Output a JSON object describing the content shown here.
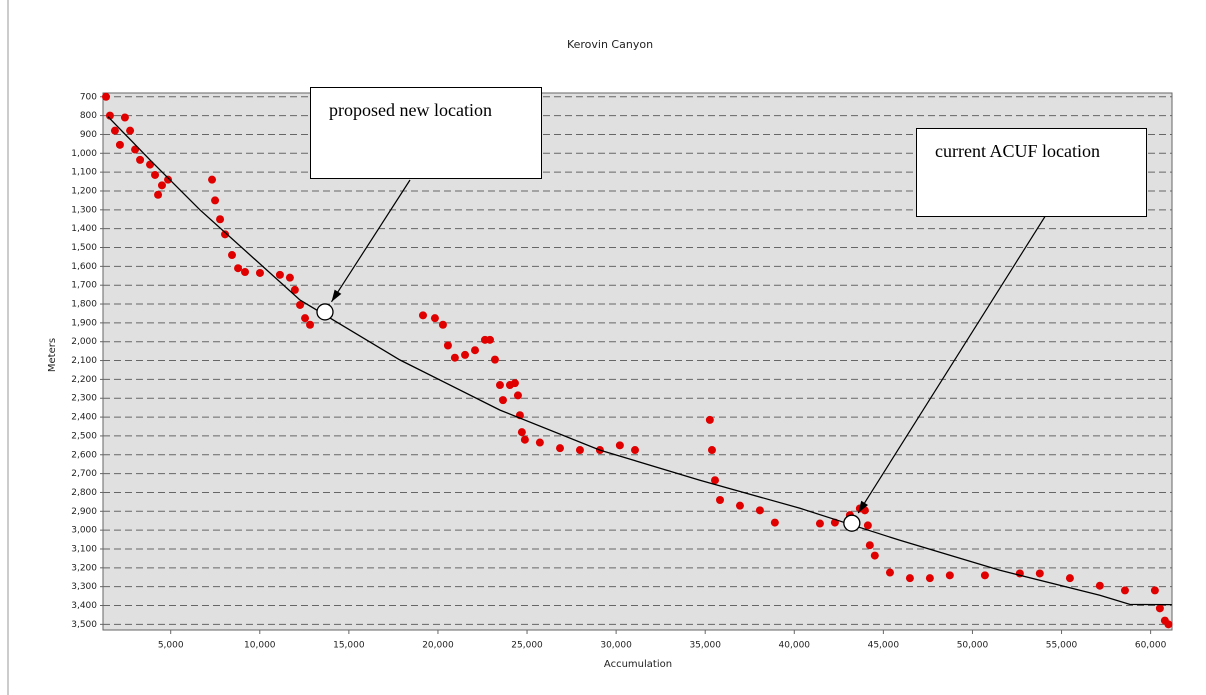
{
  "chart_data": {
    "type": "scatter",
    "title": "Kerovin Canyon",
    "x_label": "Accumulation",
    "y_label": "Meters",
    "xlim": [
      1200,
      61200
    ],
    "ylim": [
      680,
      3530
    ],
    "y_reversed": true,
    "grid": true,
    "xticks": [
      {
        "value": 5000,
        "label": "5,000"
      },
      {
        "value": 10000,
        "label": "10,000"
      },
      {
        "value": 15000,
        "label": "15,000"
      },
      {
        "value": 20000,
        "label": "20,000"
      },
      {
        "value": 25000,
        "label": "25,000"
      },
      {
        "value": 30000,
        "label": "30,000"
      },
      {
        "value": 35000,
        "label": "35,000"
      },
      {
        "value": 40000,
        "label": "40,000"
      },
      {
        "value": 45000,
        "label": "45,000"
      },
      {
        "value": 50000,
        "label": "50,000"
      },
      {
        "value": 55000,
        "label": "55,000"
      },
      {
        "value": 60000,
        "label": "60,000"
      }
    ],
    "yticks": [
      700,
      800,
      900,
      {
        "value": 1000,
        "label": "1,000"
      },
      {
        "value": 1100,
        "label": "1,100"
      },
      {
        "value": 1200,
        "label": "1,200"
      },
      {
        "value": 1300,
        "label": "1,300"
      },
      {
        "value": 1400,
        "label": "1,400"
      },
      {
        "value": 1500,
        "label": "1,500"
      },
      {
        "value": 1600,
        "label": "1,600"
      },
      {
        "value": 1700,
        "label": "1,700"
      },
      {
        "value": 1800,
        "label": "1,800"
      },
      {
        "value": 1900,
        "label": "1,900"
      },
      {
        "value": 2000,
        "label": "2,000"
      },
      {
        "value": 2100,
        "label": "2,100"
      },
      {
        "value": 2200,
        "label": "2,200"
      },
      {
        "value": 2300,
        "label": "2,300"
      },
      {
        "value": 2400,
        "label": "2,400"
      },
      {
        "value": 2500,
        "label": "2,500"
      },
      {
        "value": 2600,
        "label": "2,600"
      },
      {
        "value": 2700,
        "label": "2,700"
      },
      {
        "value": 2800,
        "label": "2,800"
      },
      {
        "value": 2900,
        "label": "2,900"
      },
      {
        "value": 3000,
        "label": "3,000"
      },
      {
        "value": 3100,
        "label": "3,100"
      },
      {
        "value": 3200,
        "label": "3,200"
      },
      {
        "value": 3300,
        "label": "3,300"
      },
      {
        "value": 3400,
        "label": "3,400"
      },
      {
        "value": 3500,
        "label": "3,500"
      }
    ],
    "series": [
      {
        "type": "scatter",
        "color": "#e00000",
        "x": [
          1370,
          1590,
          1870,
          2150,
          2430,
          2720,
          3000,
          3280,
          3840,
          4120,
          4290,
          4510,
          4850,
          7320,
          7490,
          7770,
          8050,
          8440,
          8780,
          9170,
          10010,
          11130,
          11690,
          11970,
          12260,
          12540,
          12820,
          19160,
          19830,
          20280,
          20560,
          20950,
          21520,
          22080,
          22640,
          22920,
          23200,
          23480,
          23650,
          24040,
          24320,
          24490,
          24600,
          24710,
          24880,
          25720,
          26850,
          27970,
          29090,
          30210,
          31060,
          35260,
          35380,
          35550,
          35830,
          36950,
          38070,
          38910,
          41440,
          42280,
          43120,
          43680,
          43960,
          44130,
          44240,
          44520,
          45370,
          46490,
          47610,
          48730,
          50700,
          52660,
          53780,
          55470,
          57150,
          58560,
          60240,
          60520,
          60800,
          61000
        ],
        "values": [
          700,
          800,
          880,
          955,
          810,
          880,
          980,
          1035,
          1060,
          1115,
          1220,
          1170,
          1140,
          1140,
          1250,
          1350,
          1430,
          1540,
          1610,
          1630,
          1635,
          1645,
          1660,
          1725,
          1805,
          1875,
          1910,
          1860,
          1875,
          1910,
          2020,
          2085,
          2070,
          2045,
          1990,
          1990,
          2095,
          2230,
          2310,
          2230,
          2220,
          2285,
          2390,
          2480,
          2520,
          2535,
          2565,
          2575,
          2575,
          2550,
          2575,
          2415,
          2575,
          2735,
          2840,
          2870,
          2895,
          2960,
          2965,
          2960,
          2920,
          2885,
          2895,
          2975,
          3080,
          3135,
          3225,
          3255,
          3255,
          3240,
          3240,
          3230,
          3230,
          3255,
          3295,
          3320,
          3320,
          3415,
          3480,
          3500
        ]
      },
      {
        "type": "line",
        "color": "#000000",
        "x": [
          1480,
          3840,
          6640,
          12260,
          17870,
          23480,
          29090,
          34700,
          40320,
          45930,
          51540,
          57150,
          58830,
          61190
        ],
        "values": [
          806,
          1035,
          1300,
          1779,
          2097,
          2363,
          2575,
          2735,
          2884,
          3054,
          3213,
          3346,
          3394,
          3395
        ]
      }
    ],
    "annotations": [
      {
        "text": "proposed new location",
        "x": 13660,
        "y": 1842
      },
      {
        "text": "current ACUF location",
        "x": 43230,
        "y": 2963
      }
    ]
  }
}
